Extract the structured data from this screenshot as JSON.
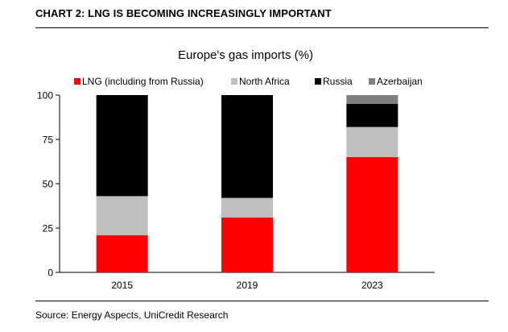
{
  "header": {
    "title": "CHART 2: LNG IS BECOMING INCREASINGLY IMPORTANT"
  },
  "footer": {
    "source": "Source: Energy Aspects, UniCredit Research"
  },
  "chart_data": {
    "type": "bar",
    "stacked": true,
    "title": "Europe's gas imports (%)",
    "xlabel": "",
    "ylabel": "",
    "categories": [
      "2015",
      "2019",
      "2023"
    ],
    "series": [
      {
        "name": "LNG (including from Russia)",
        "color": "#ff0000",
        "values": [
          21,
          31,
          65
        ]
      },
      {
        "name": "North Africa",
        "color": "#bfbfbf",
        "values": [
          22,
          11,
          17
        ]
      },
      {
        "name": "Russia",
        "color": "#000000",
        "values": [
          57,
          58,
          13
        ]
      },
      {
        "name": "Azerbaijan",
        "color": "#7f7f7f",
        "values": [
          0,
          0,
          5
        ]
      }
    ],
    "ylim": [
      0,
      100
    ],
    "yticks": [
      0,
      25,
      50,
      75,
      100
    ],
    "legend_position": "top",
    "grid": false
  }
}
